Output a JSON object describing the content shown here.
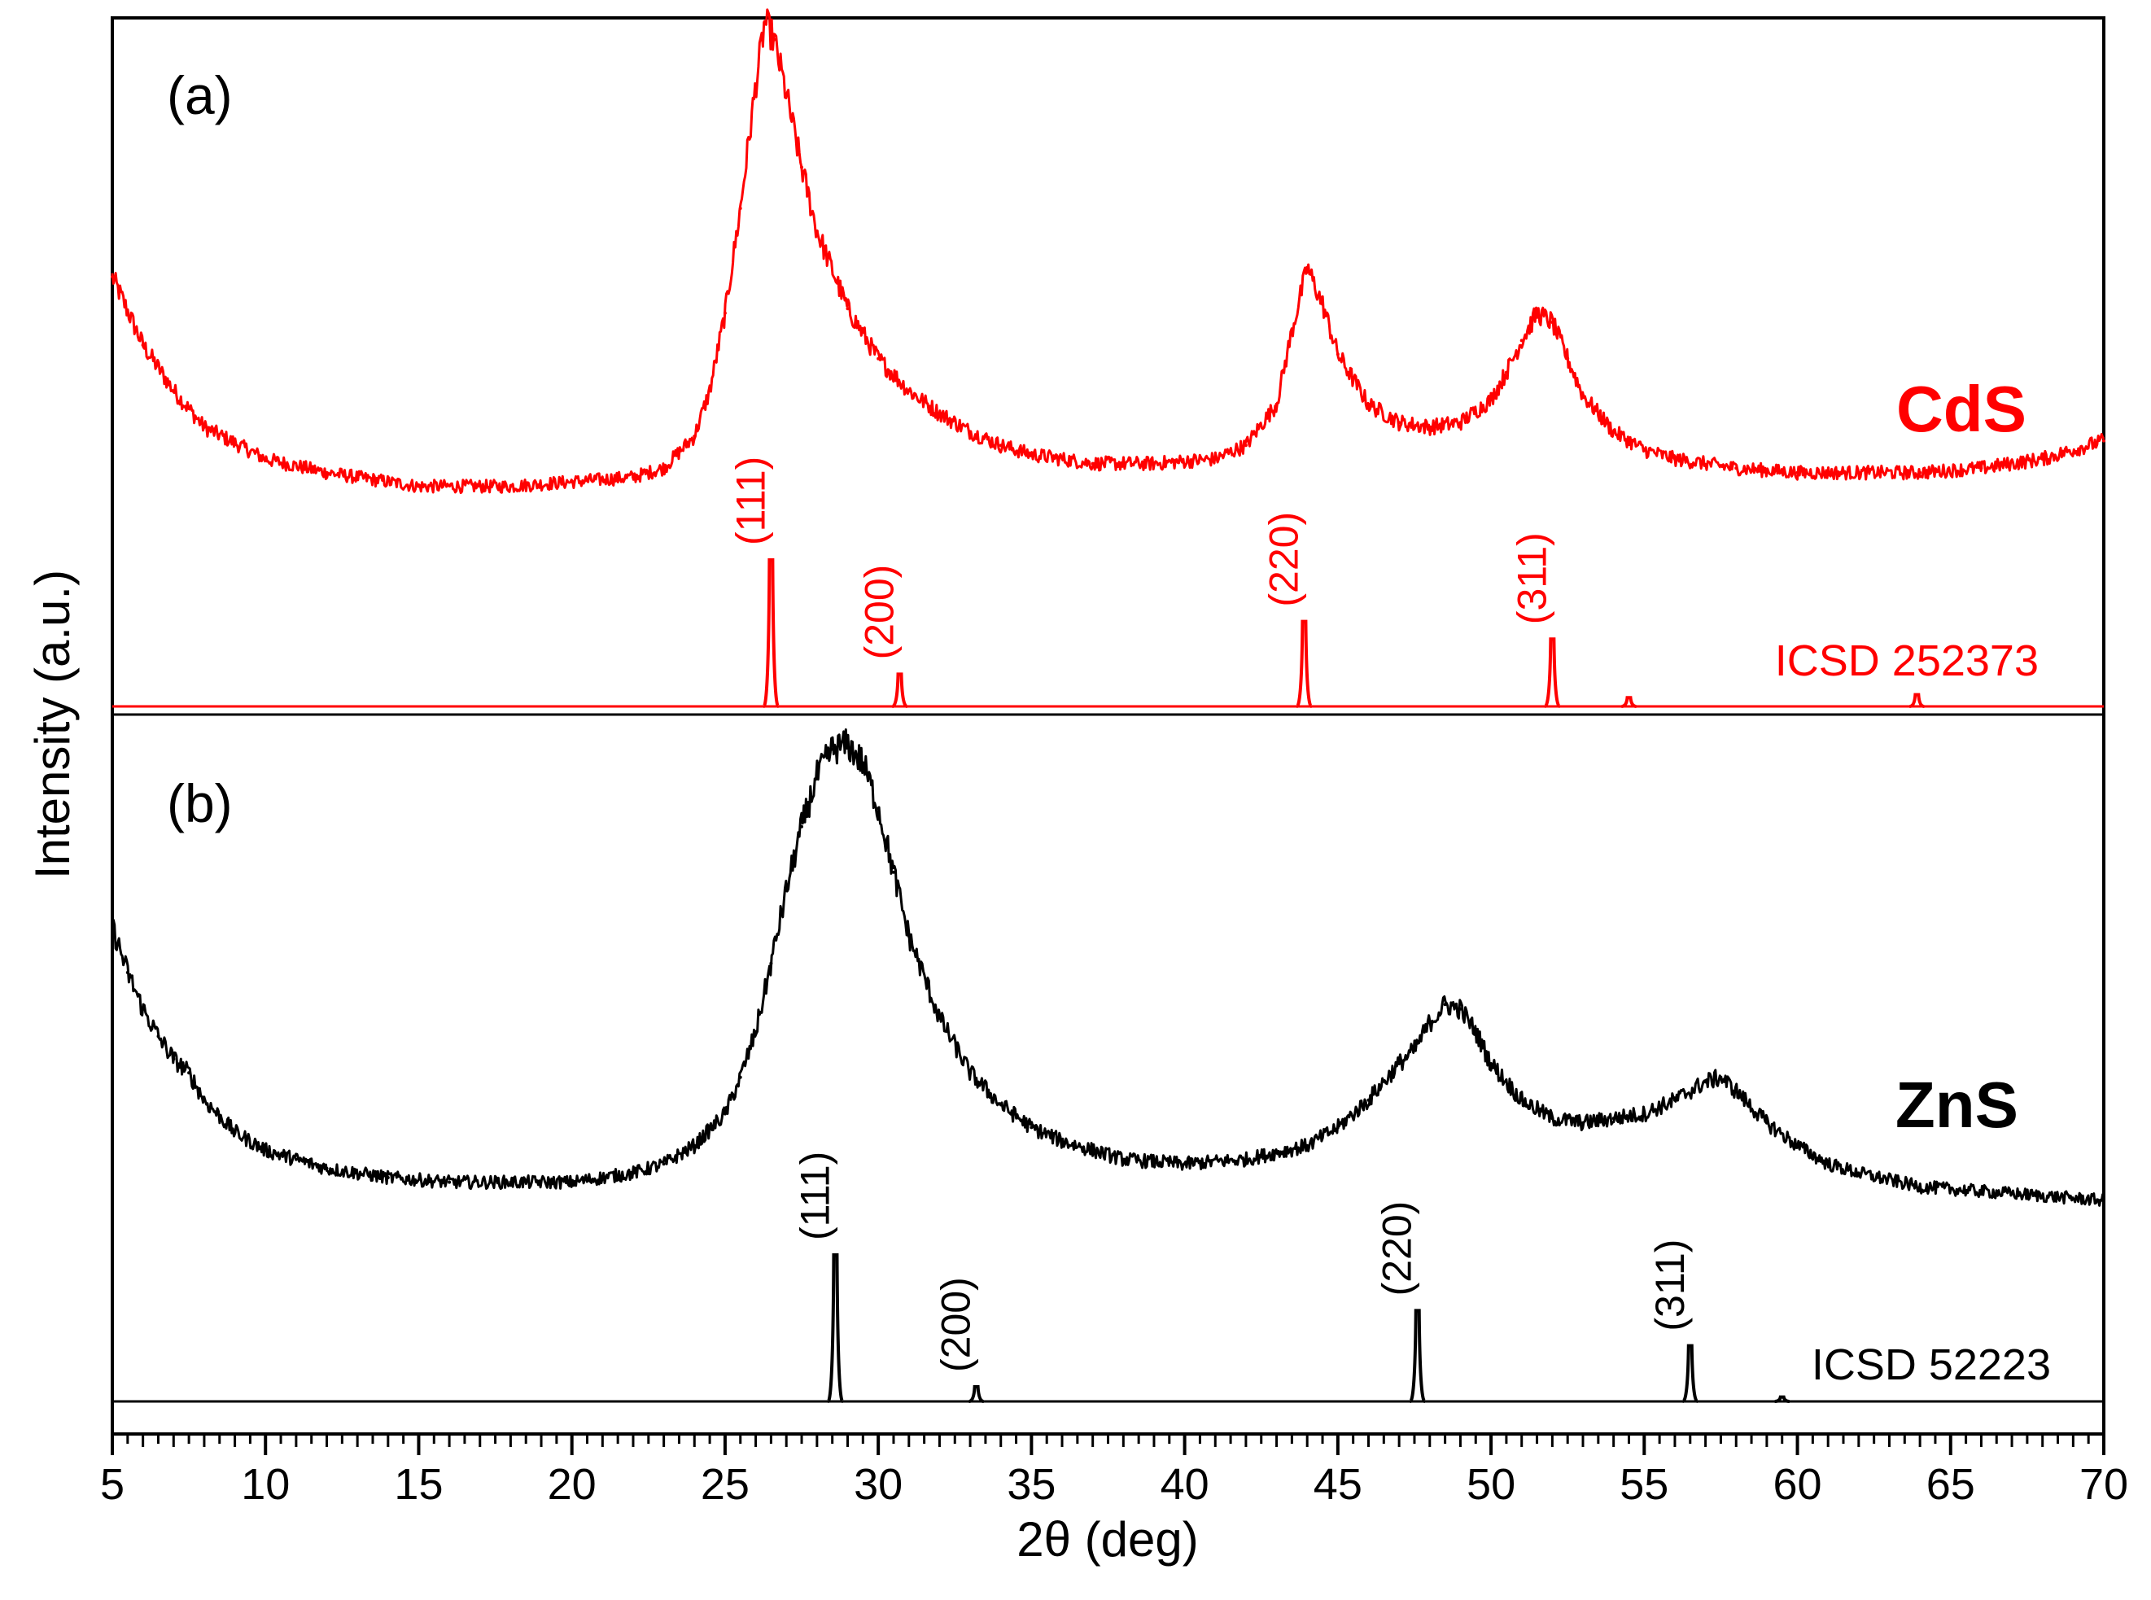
{
  "chart_data": {
    "type": "line",
    "title": "",
    "xlabel": "2θ (deg)",
    "ylabel": "Intensity (a.u.)",
    "xlim": [
      5,
      70
    ],
    "x_ticks": [
      5,
      10,
      15,
      20,
      25,
      30,
      35,
      40,
      45,
      50,
      55,
      60,
      65,
      70
    ],
    "x_tick_labels": [
      "5",
      "10",
      "15",
      "20",
      "25",
      "30",
      "35",
      "40",
      "45",
      "50",
      "55",
      "60",
      "65",
      "70"
    ],
    "y_ticks": [],
    "grid": false,
    "panels": [
      {
        "label": "(a)",
        "sample": "CdS",
        "color": "#ff0000",
        "series": [
          {
            "name": "CdS",
            "kind": "measured",
            "x": [
              5,
              6,
              7,
              8,
              10,
              12,
              15,
              18,
              20,
              22,
              23,
              24,
              24.5,
              25,
              25.5,
              26,
              26.3,
              26.6,
              27,
              27.5,
              28,
              29,
              30,
              31,
              32,
              33,
              34,
              35,
              37,
              39,
              41,
              42,
              43,
              43.5,
              44,
              44.5,
              45,
              46,
              47,
              48,
              49,
              50,
              50.5,
              51,
              51.5,
              52,
              52.5,
              53,
              54,
              55,
              56,
              58,
              60,
              62,
              64,
              66,
              68,
              70
            ],
            "y": [
              0.5,
              0.35,
              0.25,
              0.17,
              0.1,
              0.07,
              0.04,
              0.04,
              0.05,
              0.06,
              0.08,
              0.15,
              0.25,
              0.42,
              0.65,
              0.92,
              1.06,
              1.02,
              0.9,
              0.74,
              0.6,
              0.43,
              0.32,
              0.25,
              0.2,
              0.16,
              0.13,
              0.11,
              0.09,
              0.09,
              0.1,
              0.13,
              0.22,
              0.38,
              0.52,
              0.44,
              0.33,
              0.22,
              0.18,
              0.17,
              0.18,
              0.23,
              0.29,
              0.36,
              0.42,
              0.4,
              0.32,
              0.24,
              0.16,
              0.12,
              0.1,
              0.08,
              0.07,
              0.07,
              0.07,
              0.08,
              0.1,
              0.14
            ]
          },
          {
            "name": "ICSD 252373",
            "kind": "reference",
            "peaks": [
              {
                "x": 26.5,
                "y": 1.0,
                "hkl": "(111)"
              },
              {
                "x": 30.7,
                "y": 0.22,
                "hkl": "(200)"
              },
              {
                "x": 43.9,
                "y": 0.58,
                "hkl": "(220)"
              },
              {
                "x": 52.0,
                "y": 0.46,
                "hkl": "(311)"
              },
              {
                "x": 54.5,
                "y": 0.06,
                "hkl": ""
              },
              {
                "x": 63.9,
                "y": 0.08,
                "hkl": ""
              }
            ]
          }
        ]
      },
      {
        "label": "(b)",
        "sample": "ZnS",
        "color": "#000000",
        "series": [
          {
            "name": "ZnS",
            "kind": "measured",
            "x": [
              5,
              5.5,
              6,
              6.5,
              7,
              7.5,
              8,
              9,
              10,
              11,
              12,
              14,
              16,
              18,
              20,
              22,
              23,
              24,
              25,
              25.5,
              26,
              26.5,
              27,
              27.5,
              28,
              28.5,
              29,
              29.5,
              30,
              30.5,
              31,
              32,
              33,
              34,
              35,
              36,
              37,
              38,
              40,
              42,
              44,
              45,
              46,
              47,
              47.5,
              48,
              48.5,
              49,
              49.5,
              50,
              51,
              52,
              53,
              54,
              55,
              56,
              57,
              57.5,
              58,
              59,
              60,
              61,
              62,
              64,
              66,
              68,
              70
            ],
            "y": [
              0.6,
              0.5,
              0.42,
              0.36,
              0.31,
              0.28,
              0.22,
              0.15,
              0.11,
              0.09,
              0.07,
              0.05,
              0.04,
              0.04,
              0.04,
              0.06,
              0.08,
              0.12,
              0.19,
              0.27,
              0.37,
              0.52,
              0.68,
              0.82,
              0.93,
              0.99,
              1.0,
              0.96,
              0.86,
              0.72,
              0.58,
              0.4,
              0.28,
              0.21,
              0.16,
              0.13,
              0.11,
              0.09,
              0.08,
              0.09,
              0.12,
              0.16,
              0.22,
              0.3,
              0.33,
              0.39,
              0.43,
              0.42,
              0.37,
              0.3,
              0.22,
              0.18,
              0.17,
              0.18,
              0.19,
              0.22,
              0.26,
              0.27,
              0.24,
              0.17,
              0.12,
              0.08,
              0.06,
              0.03,
              0.02,
              0.01,
              0.0
            ]
          },
          {
            "name": "ICSD 52223",
            "kind": "reference",
            "peaks": [
              {
                "x": 28.6,
                "y": 1.0,
                "hkl": "(111)"
              },
              {
                "x": 33.2,
                "y": 0.1,
                "hkl": "(200)"
              },
              {
                "x": 47.6,
                "y": 0.62,
                "hkl": "(220)"
              },
              {
                "x": 56.5,
                "y": 0.38,
                "hkl": "(311)"
              },
              {
                "x": 59.5,
                "y": 0.03,
                "hkl": ""
              }
            ]
          }
        ]
      }
    ]
  }
}
